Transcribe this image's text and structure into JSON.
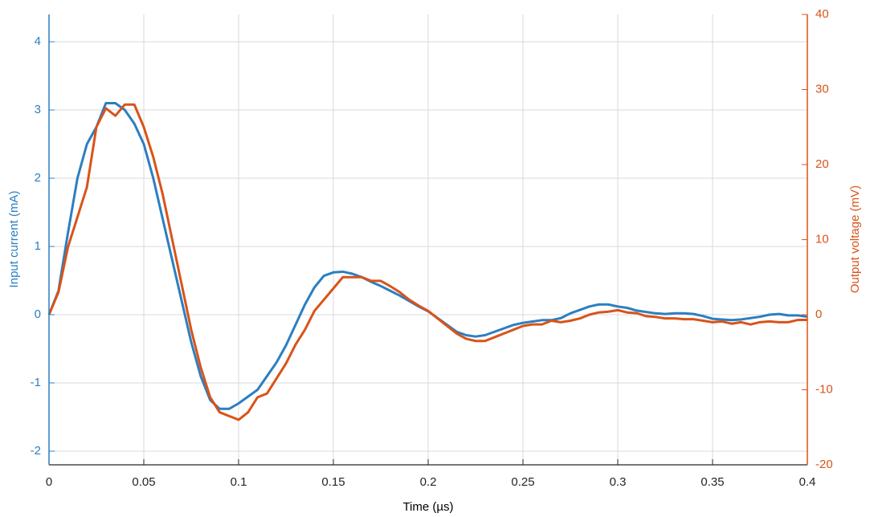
{
  "chart_data": {
    "type": "line",
    "x_label": "Time (µs)",
    "y_label": "Input current (mA)",
    "y2_label": "Output voltage (mV)",
    "x": [
      0,
      0.005,
      0.01,
      0.015,
      0.02,
      0.025,
      0.03,
      0.035,
      0.04,
      0.045,
      0.05,
      0.055,
      0.06,
      0.065,
      0.07,
      0.075,
      0.08,
      0.085,
      0.09,
      0.095,
      0.1,
      0.105,
      0.11,
      0.115,
      0.12,
      0.125,
      0.13,
      0.135,
      0.14,
      0.145,
      0.15,
      0.155,
      0.16,
      0.165,
      0.17,
      0.175,
      0.18,
      0.185,
      0.19,
      0.195,
      0.2,
      0.205,
      0.21,
      0.215,
      0.22,
      0.225,
      0.23,
      0.235,
      0.24,
      0.245,
      0.25,
      0.255,
      0.26,
      0.265,
      0.27,
      0.275,
      0.28,
      0.285,
      0.29,
      0.295,
      0.3,
      0.305,
      0.31,
      0.315,
      0.32,
      0.325,
      0.33,
      0.335,
      0.34,
      0.345,
      0.35,
      0.355,
      0.36,
      0.365,
      0.37,
      0.375,
      0.38,
      0.385,
      0.39,
      0.395,
      0.4
    ],
    "series": [
      {
        "name": "Input current",
        "color": "#2b7fc1",
        "axis": "y",
        "values": [
          0,
          0.35,
          1.2,
          2.0,
          2.5,
          2.75,
          3.1,
          3.1,
          3.0,
          2.8,
          2.5,
          2.0,
          1.4,
          0.8,
          0.2,
          -0.4,
          -0.9,
          -1.25,
          -1.38,
          -1.38,
          -1.3,
          -1.2,
          -1.1,
          -0.9,
          -0.7,
          -0.45,
          -0.15,
          0.15,
          0.4,
          0.57,
          0.62,
          0.63,
          0.6,
          0.55,
          0.48,
          0.42,
          0.35,
          0.28,
          0.2,
          0.12,
          0.05,
          -0.05,
          -0.15,
          -0.25,
          -0.3,
          -0.32,
          -0.3,
          -0.25,
          -0.2,
          -0.15,
          -0.12,
          -0.1,
          -0.08,
          -0.08,
          -0.05,
          0.02,
          0.07,
          0.12,
          0.15,
          0.15,
          0.12,
          0.1,
          0.06,
          0.04,
          0.02,
          0.01,
          0.02,
          0.02,
          0.01,
          -0.02,
          -0.06,
          -0.07,
          -0.08,
          -0.07,
          -0.05,
          -0.03,
          0.0,
          0.01,
          -0.01,
          -0.01,
          -0.03
        ]
      },
      {
        "name": "Output voltage",
        "color": "#d95319",
        "axis": "y2",
        "values": [
          0,
          3,
          9,
          13,
          17,
          25,
          27.5,
          26.5,
          28,
          28,
          25,
          21,
          16,
          10,
          4,
          -2,
          -7,
          -11,
          -13,
          -13.5,
          -14,
          -13,
          -11,
          -10.5,
          -8.5,
          -6.5,
          -4,
          -2,
          0.5,
          2,
          3.5,
          5,
          5,
          5,
          4.5,
          4.5,
          3.8,
          3,
          2,
          1.2,
          0.5,
          -0.5,
          -1.5,
          -2.5,
          -3.2,
          -3.5,
          -3.5,
          -3,
          -2.5,
          -2,
          -1.5,
          -1.3,
          -1.3,
          -0.8,
          -1,
          -0.8,
          -0.5,
          0,
          0.3,
          0.4,
          0.6,
          0.3,
          0.2,
          -0.2,
          -0.3,
          -0.5,
          -0.5,
          -0.6,
          -0.6,
          -0.8,
          -1,
          -0.9,
          -1.2,
          -1,
          -1.3,
          -1,
          -0.9,
          -1,
          -1,
          -0.7,
          -0.7
        ]
      }
    ],
    "xlim": [
      0,
      0.4
    ],
    "xticks": [
      0,
      0.05,
      0.1,
      0.15,
      0.2,
      0.25,
      0.3,
      0.35,
      0.4
    ],
    "ylim": [
      -2.2,
      4.4
    ],
    "yticks": [
      -2,
      -1,
      0,
      1,
      2,
      3,
      4
    ],
    "y2lim": [
      -20,
      40
    ],
    "y2ticks": [
      -20,
      -10,
      0,
      10,
      20,
      30,
      40
    ],
    "grid": true
  }
}
